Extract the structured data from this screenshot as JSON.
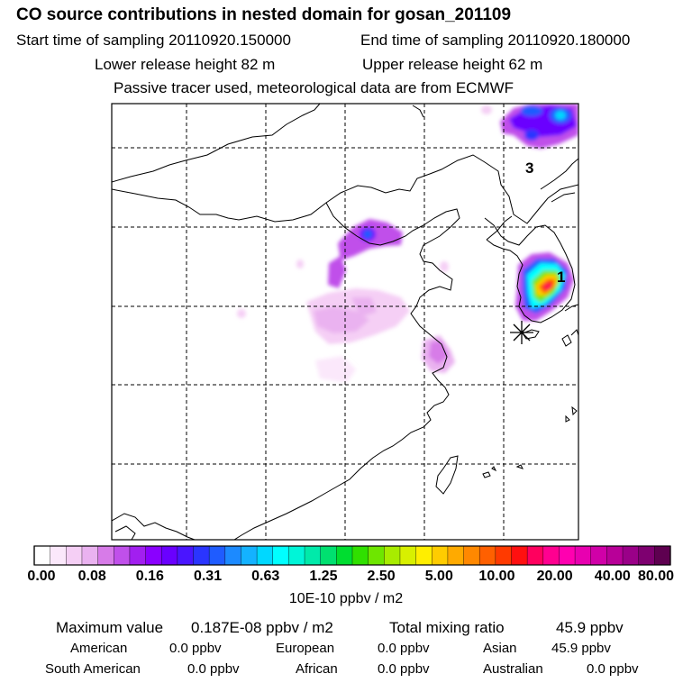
{
  "header": {
    "title": "CO  source contributions in nested domain for gosan_201109",
    "start_label": "Start time of sampling 20110920.150000",
    "end_label": "End time of sampling 20110920.180000",
    "lower_label": "Lower release height   82 m",
    "upper_label": "Upper release height   62 m",
    "tracer_label": "Passive tracer used, meteorological data are from ECMWF"
  },
  "map": {
    "region_labels": [
      "1",
      "3"
    ],
    "receptor_marker": "asterisk"
  },
  "colorbar": {
    "ticks": [
      "0.00",
      "0.08",
      "0.16",
      "0.31",
      "0.63",
      "1.25",
      "2.50",
      "5.00",
      "10.00",
      "20.00",
      "40.00",
      "80.00"
    ],
    "units": "10E-10 ppbv / m2",
    "colors": [
      "#ffffff",
      "#fbe8fb",
      "#f5cff5",
      "#eab2f0",
      "#d77be8",
      "#c050ea",
      "#a21ff0",
      "#8a00ff",
      "#6a00ff",
      "#4a15ff",
      "#2a35ff",
      "#1f5cff",
      "#1c8aff",
      "#14b2ff",
      "#00d8ff",
      "#00ffff",
      "#00f5d8",
      "#00eaaa",
      "#00e070",
      "#00dd30",
      "#30e000",
      "#6ee600",
      "#a8ec00",
      "#d8f000",
      "#ffee00",
      "#ffcc00",
      "#ffaa00",
      "#ff8800",
      "#ff6000",
      "#ff3a00",
      "#ff1010",
      "#ff005e",
      "#ff0090",
      "#ff00b0",
      "#e800b0",
      "#d000a8",
      "#b80098",
      "#9a0088",
      "#7e0070",
      "#5e0050"
    ]
  },
  "stats": {
    "max_label": "Maximum value",
    "max_value": "0.187E-08 ppbv / m2",
    "total_label": "Total mixing ratio",
    "total_value": "45.9 ppbv",
    "regions": [
      {
        "name": "American",
        "value": "0.0 ppbv"
      },
      {
        "name": "European",
        "value": "0.0 ppbv"
      },
      {
        "name": "Asian",
        "value": "45.9 ppbv"
      },
      {
        "name": "South American",
        "value": "0.0 ppbv"
      },
      {
        "name": "African",
        "value": "0.0 ppbv"
      },
      {
        "name": "Australian",
        "value": "0.0 ppbv"
      }
    ]
  }
}
